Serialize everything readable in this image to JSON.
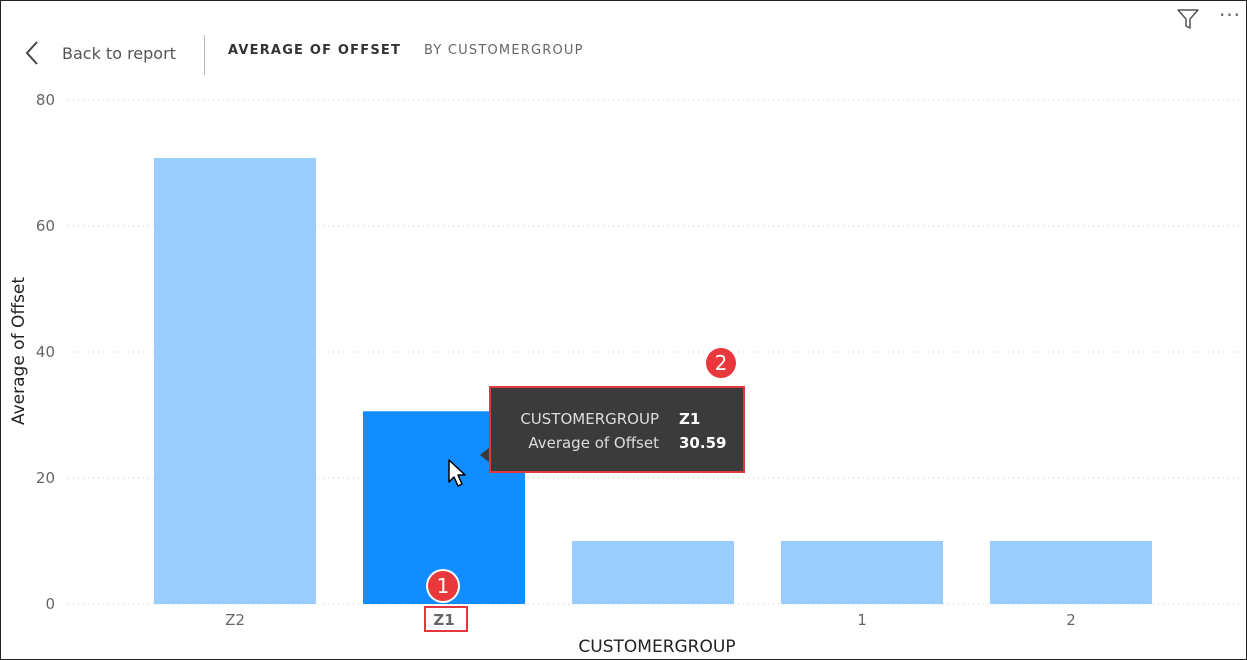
{
  "header": {
    "back_label": "Back to report",
    "breadcrumb": [
      "AVERAGE OF OFFSET",
      "BY CUSTOMERGROUP"
    ]
  },
  "icons": {
    "back": "chevron-left-icon",
    "filter": "filter-icon",
    "more": "more-options-icon",
    "cursor": "mouse-pointer-icon"
  },
  "colors": {
    "bar_default": "#99CCFF",
    "bar_selected": "#118DFF",
    "tooltip_bg": "#3B3B3B",
    "callout": "#E8383C"
  },
  "chart_data": {
    "type": "bar",
    "categories": [
      "Z2",
      "Z1",
      "",
      "1",
      "2"
    ],
    "values": [
      70.8,
      30.59,
      10,
      10,
      10
    ],
    "selected_index": 1,
    "xlabel": "CUSTOMERGROUP",
    "ylabel": "Average of Offset",
    "ylim": [
      0,
      80
    ],
    "yticks": [
      0,
      20,
      40,
      60,
      80
    ],
    "grid": true
  },
  "tooltip": {
    "rows": [
      {
        "key": "CUSTOMERGROUP",
        "value": "Z1"
      },
      {
        "key": "Average of Offset",
        "value": "30.59"
      }
    ]
  },
  "callouts": [
    "1",
    "2"
  ]
}
